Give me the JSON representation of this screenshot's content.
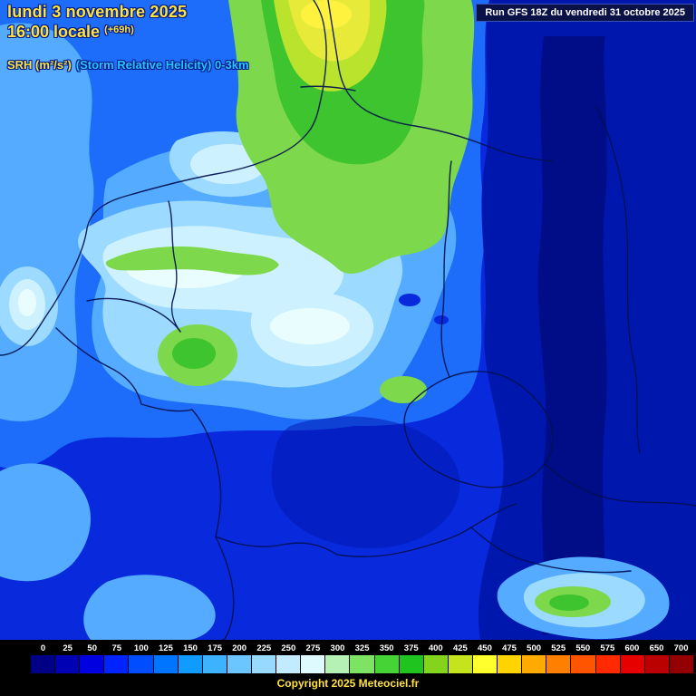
{
  "header": {
    "date_line": "lundi 3 novembre 2025",
    "time_line": "16:00 locale",
    "offset": "(+69h)",
    "param_main": "SRH (m²/s²)",
    "param_sub": "(Storm Relative Helicity) 0-3km",
    "run_info": "Run GFS 18Z du vendredi 31 octobre 2025"
  },
  "footer": {
    "copyright": "Copyright 2025 Meteociel.fr"
  },
  "colorbar": {
    "values": [
      0,
      25,
      50,
      75,
      100,
      125,
      150,
      175,
      200,
      225,
      250,
      275,
      300,
      325,
      350,
      375,
      400,
      425,
      450,
      475,
      500,
      525,
      550,
      575,
      600,
      650,
      700
    ],
    "colors": [
      "#000087",
      "#0000b4",
      "#0000e1",
      "#0023ff",
      "#004cff",
      "#0075ff",
      "#0f9bff",
      "#3db2ff",
      "#6bc6ff",
      "#98d9ff",
      "#c2ebff",
      "#defaff",
      "#b5f0b4",
      "#7ee362",
      "#46d335",
      "#1fc41f",
      "#84d41e",
      "#c6e41e",
      "#ffff2e",
      "#ffd400",
      "#ffaa00",
      "#ff7f00",
      "#ff5500",
      "#ff2a00",
      "#e60000",
      "#bb0000",
      "#940000"
    ]
  },
  "map_palette": {
    "base": "#0829dc",
    "deep": "#0017ae",
    "deep2": "#000d86",
    "mid": "#1e6cfa",
    "light": "#54abff",
    "pale": "#9cdaff",
    "paler": "#cdf1ff",
    "palest": "#e9fdff",
    "green": "#3ec42e",
    "green_light": "#7dd84b",
    "ygreen": "#b9e32c",
    "yellow": "#e8ea3a",
    "yellow_bright": "#fff23e",
    "border": "#001050"
  },
  "text_colors": {
    "title_yellow": "#ffe23c",
    "param_cyan": "#29c5ff",
    "run_text": "#ffffff",
    "legend_text": "#ffffff",
    "copyright_yellow": "#ffe23c"
  }
}
